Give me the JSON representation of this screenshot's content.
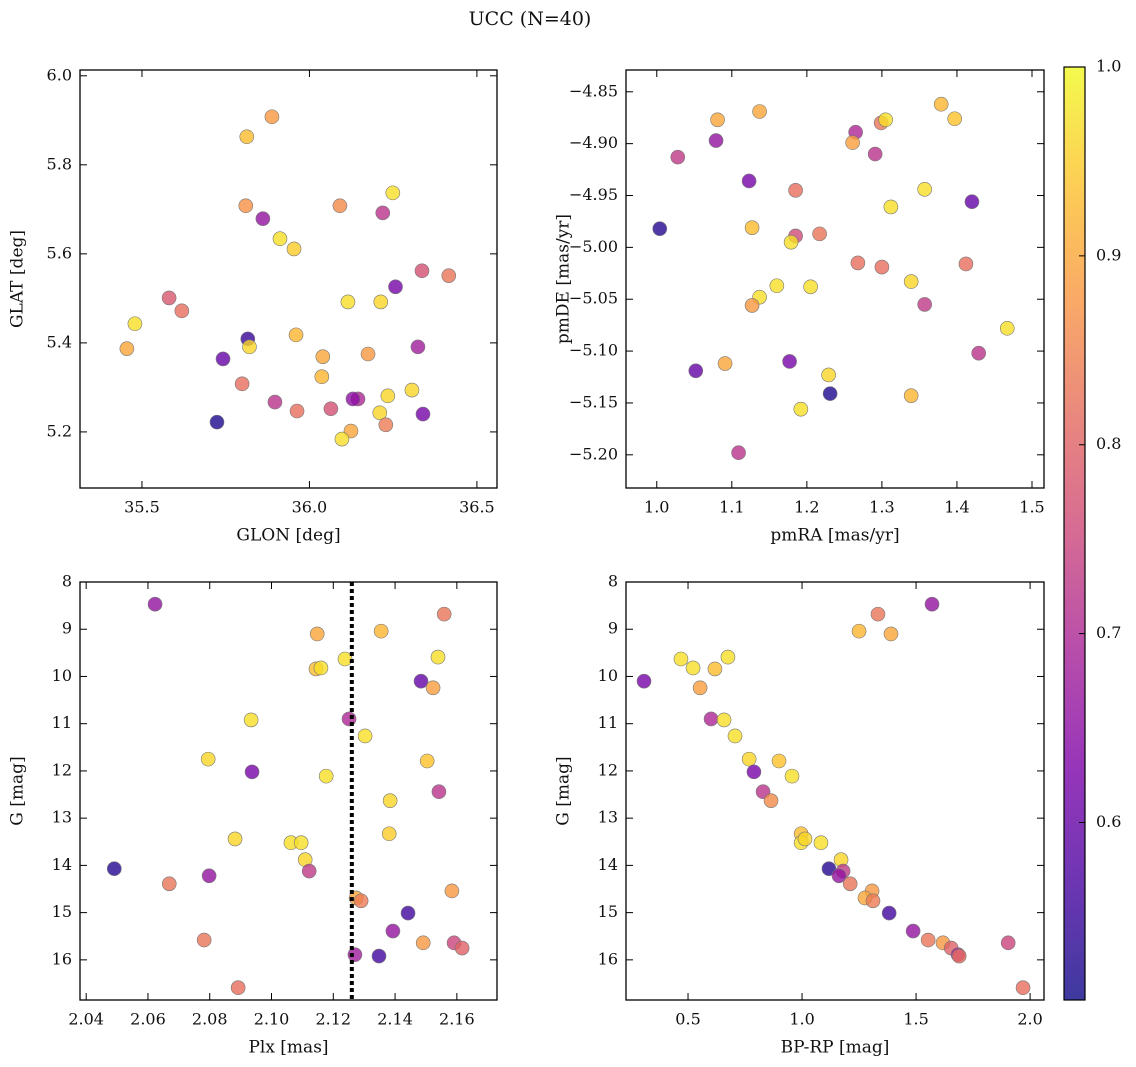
{
  "title": "UCC (N=40)",
  "chart_data": [
    {
      "type": "scatter",
      "xlabel": "GLON [deg]",
      "ylabel": "GLAT [deg]",
      "x": [
        35.888,
        35.813,
        35.81,
        35.861,
        35.912,
        35.954,
        36.091,
        36.249,
        36.219,
        35.581,
        35.619,
        35.479,
        35.455,
        36.115,
        36.213,
        36.257,
        36.336,
        36.416,
        35.816,
        35.742,
        35.821,
        35.96,
        36.04,
        36.175,
        36.324,
        35.799,
        36.037,
        36.306,
        36.234,
        35.897,
        36.145,
        36.13,
        36.064,
        35.963,
        36.21,
        36.339,
        35.724,
        36.228,
        36.124,
        36.097
      ],
      "y": [
        5.908,
        5.863,
        5.708,
        5.679,
        5.634,
        5.611,
        5.708,
        5.737,
        5.692,
        5.501,
        5.472,
        5.443,
        5.387,
        5.492,
        5.492,
        5.526,
        5.562,
        5.551,
        5.409,
        5.364,
        5.391,
        5.418,
        5.369,
        5.375,
        5.391,
        5.308,
        5.324,
        5.294,
        5.281,
        5.267,
        5.274,
        5.274,
        5.252,
        5.247,
        5.243,
        5.24,
        5.222,
        5.216,
        5.202,
        5.184
      ],
      "c": [
        0.88,
        0.93,
        0.87,
        0.66,
        0.97,
        0.95,
        0.86,
        0.97,
        0.72,
        0.78,
        0.82,
        0.97,
        0.9,
        0.97,
        0.96,
        0.62,
        0.77,
        0.83,
        0.55,
        0.6,
        0.96,
        0.92,
        0.9,
        0.88,
        0.68,
        0.82,
        0.92,
        0.96,
        0.96,
        0.72,
        0.7,
        0.65,
        0.77,
        0.82,
        0.96,
        0.62,
        0.52,
        0.84,
        0.9,
        0.97
      ],
      "xlim": [
        35.315,
        36.56
      ],
      "ylim": [
        5.074,
        6.013
      ],
      "xticks": [
        35.5,
        {
          "value": 36,
          "label": "36.0"
        },
        36.5
      ],
      "yticks": [
        5.2,
        5.4,
        5.6,
        5.8,
        {
          "value": 6,
          "label": "6.0"
        }
      ]
    },
    {
      "type": "scatter",
      "xlabel": "pmRA [mas/yr]",
      "ylabel": "pmDE [mas/yr]",
      "x": [
        1.379,
        1.137,
        1.081,
        1.397,
        1.299,
        1.305,
        1.265,
        1.079,
        1.261,
        1.291,
        1.028,
        1.123,
        1.185,
        1.357,
        1.42,
        1.312,
        1.004,
        1.127,
        1.185,
        1.217,
        1.179,
        1.268,
        1.3,
        1.412,
        1.16,
        1.205,
        1.339,
        1.137,
        1.127,
        1.357,
        1.467,
        1.429,
        1.052,
        1.091,
        1.177,
        1.229,
        1.231,
        1.339,
        1.192,
        1.109
      ],
      "y": [
        -4.862,
        -4.869,
        -4.877,
        -4.876,
        -4.88,
        -4.877,
        -4.889,
        -4.897,
        -4.899,
        -4.91,
        -4.913,
        -4.936,
        -4.945,
        -4.944,
        -4.956,
        -4.961,
        -4.982,
        -4.981,
        -4.989,
        -4.987,
        -4.995,
        -5.015,
        -5.019,
        -5.016,
        -5.037,
        -5.038,
        -5.033,
        -5.048,
        -5.056,
        -5.055,
        -5.078,
        -5.102,
        -5.119,
        -5.112,
        -5.11,
        -5.123,
        -5.141,
        -5.143,
        -5.156,
        -5.198
      ],
      "c": [
        0.92,
        0.9,
        0.9,
        0.94,
        0.83,
        0.97,
        0.7,
        0.66,
        0.89,
        0.72,
        0.73,
        0.62,
        0.82,
        0.97,
        0.6,
        0.97,
        0.53,
        0.93,
        0.76,
        0.83,
        0.97,
        0.82,
        0.82,
        0.82,
        0.97,
        0.97,
        0.96,
        0.97,
        0.88,
        0.73,
        0.97,
        0.72,
        0.6,
        0.9,
        0.62,
        0.96,
        0.52,
        0.92,
        0.97,
        0.72
      ],
      "xlim": [
        0.959,
        1.516
      ],
      "ylim": [
        -5.232,
        -4.829
      ],
      "xticks": [
        {
          "value": 1,
          "label": "1.0"
        },
        1.1,
        1.2,
        1.3,
        1.4,
        1.5
      ],
      "yticks": [
        {
          "value": -5.2,
          "label": "−5.20"
        },
        {
          "value": -5.15,
          "label": "−5.15"
        },
        {
          "value": -5.1,
          "label": "−5.10"
        },
        {
          "value": -5.05,
          "label": "−5.05"
        },
        {
          "value": -5,
          "label": "−5.00"
        },
        {
          "value": -4.95,
          "label": "−4.95"
        },
        {
          "value": -4.9,
          "label": "−4.90"
        },
        {
          "value": -4.85,
          "label": "−4.85"
        }
      ]
    },
    {
      "type": "scatter",
      "xlabel": "Plx [mas]",
      "ylabel": "G [mag]",
      "x": [
        2.0623,
        2.1559,
        2.1148,
        2.1355,
        2.1144,
        2.116,
        2.1238,
        2.1539,
        2.1484,
        2.1523,
        2.0934,
        2.1251,
        2.1303,
        2.0795,
        2.1504,
        2.0937,
        2.1177,
        2.1542,
        2.1384,
        2.1381,
        2.0882,
        2.1063,
        2.1096,
        2.1109,
        2.0491,
        2.1122,
        2.0669,
        2.0798,
        2.1584,
        2.1274,
        2.129,
        2.1442,
        2.0782,
        2.1393,
        2.1491,
        2.1591,
        2.1617,
        2.127,
        2.1348,
        2.0892
      ],
      "y": [
        8.47,
        8.68,
        9.1,
        9.04,
        9.84,
        9.82,
        9.63,
        9.59,
        10.1,
        10.24,
        10.92,
        10.9,
        11.26,
        11.75,
        11.79,
        12.02,
        12.11,
        12.44,
        12.63,
        13.33,
        13.44,
        13.52,
        13.52,
        13.88,
        14.07,
        14.12,
        14.39,
        14.22,
        14.54,
        14.69,
        14.75,
        15.01,
        15.58,
        15.39,
        15.64,
        15.64,
        15.75,
        15.89,
        15.92,
        16.59
      ],
      "c": [
        0.66,
        0.83,
        0.9,
        0.92,
        0.93,
        0.97,
        0.97,
        0.97,
        0.6,
        0.89,
        0.97,
        0.7,
        0.97,
        0.96,
        0.94,
        0.62,
        0.97,
        0.72,
        0.96,
        0.95,
        0.96,
        0.97,
        0.97,
        0.96,
        0.53,
        0.73,
        0.83,
        0.66,
        0.88,
        0.9,
        0.84,
        0.56,
        0.83,
        0.66,
        0.88,
        0.75,
        0.8,
        0.68,
        0.56,
        0.82
      ],
      "vline": 2.126,
      "xlim": [
        2.038,
        2.173
      ],
      "ylim": [
        8,
        16.85
      ],
      "y_inverted": true,
      "xticks": [
        2.04,
        2.06,
        2.08,
        {
          "value": 2.1,
          "label": "2.10"
        },
        2.12,
        2.14,
        2.16
      ],
      "yticks": [
        8,
        9,
        10,
        11,
        12,
        13,
        14,
        15,
        16
      ]
    },
    {
      "type": "scatter",
      "xlabel": "BP-RP [mag]",
      "ylabel": "G [mag]",
      "x": [
        0.307,
        0.469,
        0.522,
        0.675,
        0.618,
        0.553,
        0.601,
        0.658,
        0.706,
        0.768,
        0.789,
        0.899,
        0.956,
        0.829,
        0.864,
        0.996,
        0.996,
        1.013,
        1.083,
        1.171,
        1.118,
        1.18,
        1.162,
        1.211,
        1.307,
        1.276,
        1.311,
        1.382,
        1.487,
        1.553,
        1.618,
        1.654,
        1.684,
        1.689,
        1.904,
        1.969,
        1.57,
        1.333,
        1.25,
        1.39
      ],
      "y": [
        10.1,
        9.63,
        9.82,
        9.59,
        9.84,
        10.24,
        10.9,
        10.92,
        11.26,
        11.75,
        12.02,
        11.79,
        12.11,
        12.44,
        12.63,
        13.33,
        13.52,
        13.44,
        13.52,
        13.88,
        14.07,
        14.12,
        14.22,
        14.39,
        14.54,
        14.69,
        14.75,
        15.01,
        15.39,
        15.58,
        15.64,
        15.75,
        15.89,
        15.92,
        15.64,
        16.59,
        8.47,
        8.68,
        9.04,
        9.1
      ],
      "c": [
        0.62,
        0.97,
        0.97,
        0.97,
        0.93,
        0.89,
        0.7,
        0.97,
        0.97,
        0.96,
        0.62,
        0.94,
        0.97,
        0.72,
        0.86,
        0.93,
        0.97,
        0.96,
        0.97,
        0.96,
        0.53,
        0.73,
        0.66,
        0.83,
        0.88,
        0.9,
        0.84,
        0.56,
        0.66,
        0.83,
        0.88,
        0.8,
        0.68,
        0.82,
        0.75,
        0.82,
        0.66,
        0.83,
        0.92,
        0.9
      ],
      "xlim": [
        0.228,
        2.061
      ],
      "ylim": [
        8,
        16.85
      ],
      "y_inverted": true,
      "xticks": [
        0.5,
        {
          "value": 1,
          "label": "1.0"
        },
        1.5,
        {
          "value": 2,
          "label": "2.0"
        }
      ],
      "yticks": [
        8,
        9,
        10,
        11,
        12,
        13,
        14,
        15,
        16
      ]
    },
    {
      "type": "colorbar",
      "cmap": "plasma",
      "alpha": 0.8,
      "clim": [
        0.506,
        1.0
      ],
      "ticks": [
        0.6,
        0.7,
        0.8,
        0.9,
        {
          "value": 1,
          "label": "1.0"
        }
      ]
    }
  ]
}
